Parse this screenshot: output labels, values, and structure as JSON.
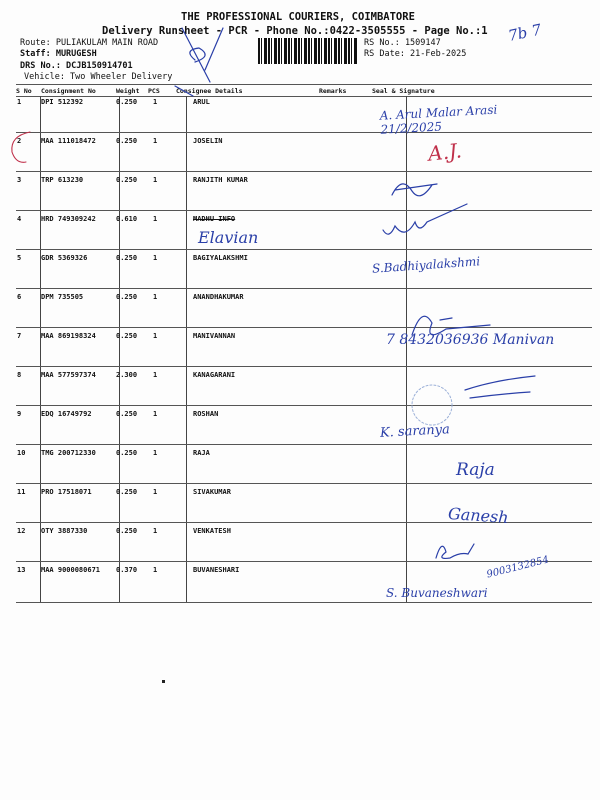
{
  "header": {
    "company": "THE PROFESSIONAL COURIERS, COIMBATORE",
    "subtitle": "Delivery Runsheet - PCR - Phone No.:0422-3505555 - Page No.:1",
    "route": "Route: PULIAKULAM MAIN ROAD",
    "staff": "Staff: MURUGESH",
    "drs": "DRS No.: DCJB150914701",
    "vehicle": "Vehicle: Two Wheeler Delivery",
    "rs_no": "RS No.: 1509147",
    "rs_date": "RS Date: 21-Feb-2025",
    "handwritten_note": "7b 7"
  },
  "table": {
    "columns": [
      "S No",
      "Consignment No",
      "Weight",
      "PCS",
      "Consignee Details",
      "Remarks",
      "Seal & Signature"
    ],
    "rows": [
      {
        "sno": "1",
        "cn": "DPI 512392",
        "wt": "0.250",
        "pcs": "1",
        "name": "ARUL",
        "sign": "A. Arul Malar Arasi 21/2/2025"
      },
      {
        "sno": "2",
        "cn": "MAA 111018472",
        "wt": "0.250",
        "pcs": "1",
        "name": "JOSELIN",
        "sign": "A.J."
      },
      {
        "sno": "3",
        "cn": "TRP 613230",
        "wt": "0.250",
        "pcs": "1",
        "name": "RANJITH KUMAR",
        "sign": ""
      },
      {
        "sno": "4",
        "cn": "HRD 749309242",
        "wt": "0.610",
        "pcs": "1",
        "name": "MADHU INFO",
        "note": "Elavian",
        "sign": ""
      },
      {
        "sno": "5",
        "cn": "GDR 5369326",
        "wt": "0.250",
        "pcs": "1",
        "name": "BAGIYALAKSHMI",
        "sign": "S.Badhiyalakshmi"
      },
      {
        "sno": "6",
        "cn": "DPM 735505",
        "wt": "0.250",
        "pcs": "1",
        "name": "ANANDHAKUMAR",
        "sign": ""
      },
      {
        "sno": "7",
        "cn": "MAA 869198324",
        "wt": "0.250",
        "pcs": "1",
        "name": "MANIVANNAN",
        "sign": "7 8432036936 Manivan"
      },
      {
        "sno": "8",
        "cn": "MAA 577597374",
        "wt": "2.300",
        "pcs": "1",
        "name": "KANAGARANI",
        "sign": ""
      },
      {
        "sno": "9",
        "cn": "EDQ 16749792",
        "wt": "0.250",
        "pcs": "1",
        "name": "ROSHAN",
        "sign": "K. saranya"
      },
      {
        "sno": "10",
        "cn": "TMG 200712330",
        "wt": "0.250",
        "pcs": "1",
        "name": "RAJA",
        "sign": "Raja"
      },
      {
        "sno": "11",
        "cn": "PRO 17518071",
        "wt": "0.250",
        "pcs": "1",
        "name": "SIVAKUMAR",
        "sign": "Ganesh"
      },
      {
        "sno": "12",
        "cn": "OTY 3887330",
        "wt": "0.250",
        "pcs": "1",
        "name": "VENKATESH",
        "sign": "9003132854"
      },
      {
        "sno": "13",
        "cn": "MAA 9000080671",
        "wt": "0.370",
        "pcs": "1",
        "name": "BUVANESHARI",
        "sign": "S. Buvaneshwari"
      }
    ]
  },
  "colors": {
    "ink_blue": "#2a3fa8",
    "ink_red": "#c0304a"
  }
}
